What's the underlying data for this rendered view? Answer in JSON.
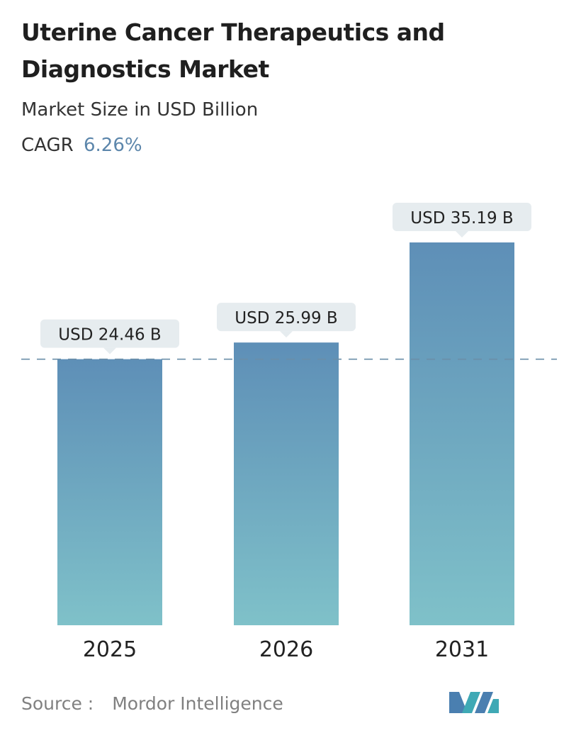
{
  "header": {
    "title": "Uterine Cancer Therapeutics and Diagnostics Market",
    "subtitle": "Market Size in USD Billion",
    "cagr_label": "CAGR",
    "cagr_value": "6.26%"
  },
  "chart_data": {
    "type": "bar",
    "categories": [
      "2025",
      "2026",
      "2031"
    ],
    "values": [
      24.46,
      25.99,
      35.19
    ],
    "data_labels": [
      "USD 24.46 B",
      "USD 25.99 B",
      "USD 35.19 B"
    ],
    "ylim": [
      0,
      35.19
    ],
    "grid": false,
    "reference_line_value": 24.46,
    "colors": {
      "bar_top": "#5e8fb7",
      "bar_bottom": "#7fc1c9",
      "label_bg": "#e6ecef",
      "reference_line": "#6a8ea8"
    }
  },
  "footer": {
    "source_label": "Source :",
    "source_name": "Mordor Intelligence",
    "logo_icon": "mordor-intelligence-logo-icon"
  }
}
